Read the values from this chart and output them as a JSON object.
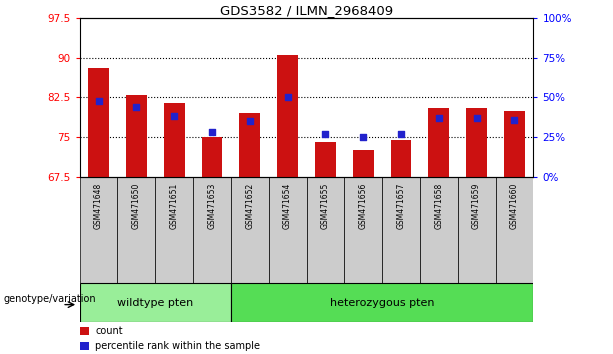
{
  "title": "GDS3582 / ILMN_2968409",
  "samples": [
    "GSM471648",
    "GSM471650",
    "GSM471651",
    "GSM471653",
    "GSM471652",
    "GSM471654",
    "GSM471655",
    "GSM471656",
    "GSM471657",
    "GSM471658",
    "GSM471659",
    "GSM471660"
  ],
  "count_values": [
    88.0,
    83.0,
    81.5,
    75.0,
    79.5,
    90.5,
    74.0,
    72.5,
    74.5,
    80.5,
    80.5,
    80.0
  ],
  "percentile_values": [
    48,
    44,
    38,
    28,
    35,
    50,
    27,
    25,
    27,
    37,
    37,
    36
  ],
  "ylim_left": [
    67.5,
    97.5
  ],
  "ylim_right": [
    0,
    100
  ],
  "yticks_left": [
    67.5,
    75.0,
    82.5,
    90.0,
    97.5
  ],
  "ytick_labels_left": [
    "67.5",
    "75",
    "82.5",
    "90",
    "97.5"
  ],
  "yticks_right": [
    0,
    25,
    50,
    75,
    100
  ],
  "ytick_labels_right": [
    "0%",
    "25%",
    "50%",
    "75%",
    "100%"
  ],
  "bar_color": "#cc1111",
  "dot_color": "#2222cc",
  "wildtype_label": "wildtype pten",
  "heterozygous_label": "heterozygous pten",
  "genotype_label": "genotype/variation",
  "legend_count_label": "count",
  "legend_percentile_label": "percentile rank within the sample",
  "wildtype_color": "#99ee99",
  "heterozygous_color": "#55dd55",
  "sample_box_color": "#cccccc",
  "bar_width": 0.55,
  "n_wildtype": 4,
  "n_samples": 12
}
